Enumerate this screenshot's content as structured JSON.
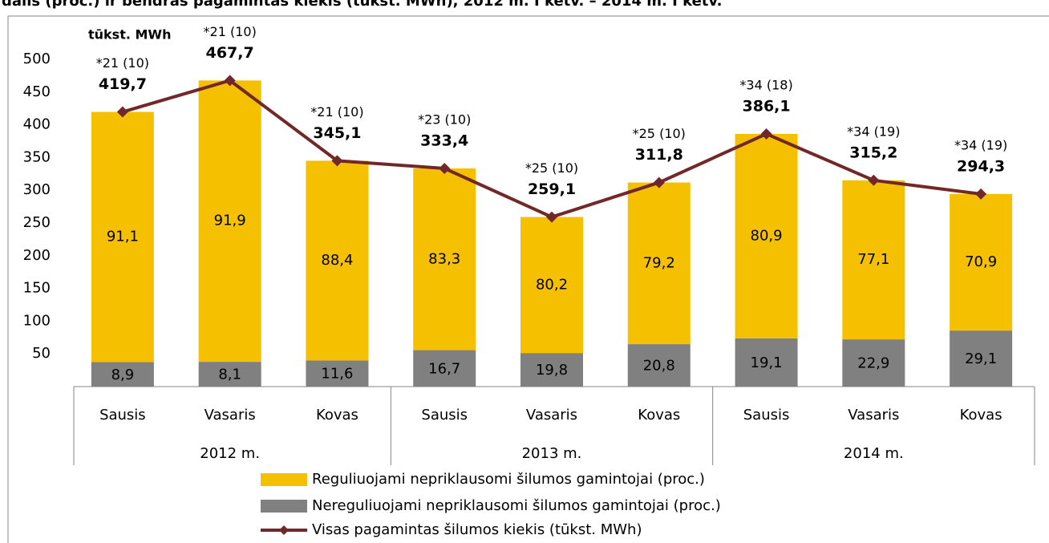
{
  "chart_data": {
    "type": "bar",
    "title": "dalis (proc.) ir bendras pagamintas kiekis (tūkst. MWh), 2012 m. I ketv. – 2014 m. I ketv.",
    "y_label": "tūkst. MWh",
    "categories": [
      "Sausis",
      "Vasaris",
      "Kovas",
      "Sausis",
      "Vasaris",
      "Kovas",
      "Sausis",
      "Vasaris",
      "Kovas"
    ],
    "groups": [
      "2012 m.",
      "2013 m.",
      "2014 m."
    ],
    "annotations": [
      "*21 (10)",
      "*21 (10)",
      "*21 (10)",
      "*23 (10)",
      "*25 (10)",
      "*25 (10)",
      "*34 (18)",
      "*34 (19)",
      "*34 (19)"
    ],
    "series": [
      {
        "name": "Reguliuojami nepriklausomi šilumos gamintojai (proc.)",
        "type": "bar",
        "color": "#f5c000",
        "values": [
          91.1,
          91.9,
          88.4,
          83.3,
          80.2,
          79.2,
          80.9,
          77.1,
          70.9
        ],
        "value_labels": [
          "91,1",
          "91,9",
          "88,4",
          "83,3",
          "80,2",
          "79,2",
          "80,9",
          "77,1",
          "70,9"
        ]
      },
      {
        "name": "Nereguliuojami nepriklausomi šilumos gamintojai (proc.)",
        "type": "bar",
        "color": "#808080",
        "values": [
          8.9,
          8.1,
          11.6,
          16.7,
          19.8,
          20.8,
          19.1,
          22.9,
          29.1
        ],
        "value_labels": [
          "8,9",
          "8,1",
          "11,6",
          "16,7",
          "19,8",
          "20,8",
          "19,1",
          "22,9",
          "29,1"
        ]
      },
      {
        "name": "Visas pagamintas šilumos kiekis (tūkst. MWh)",
        "type": "line",
        "color": "#722828",
        "values": [
          419.7,
          467.7,
          345.1,
          333.4,
          259.1,
          311.8,
          386.1,
          315.2,
          294.3
        ],
        "value_labels": [
          "419,7",
          "467,7",
          "345,1",
          "333,4",
          "259,1",
          "311,8",
          "386,1",
          "315,2",
          "294,3"
        ]
      }
    ],
    "ylim": [
      0,
      500
    ],
    "yticks": [
      50,
      100,
      150,
      200,
      250,
      300,
      350,
      400,
      450,
      500
    ],
    "grid": false
  }
}
